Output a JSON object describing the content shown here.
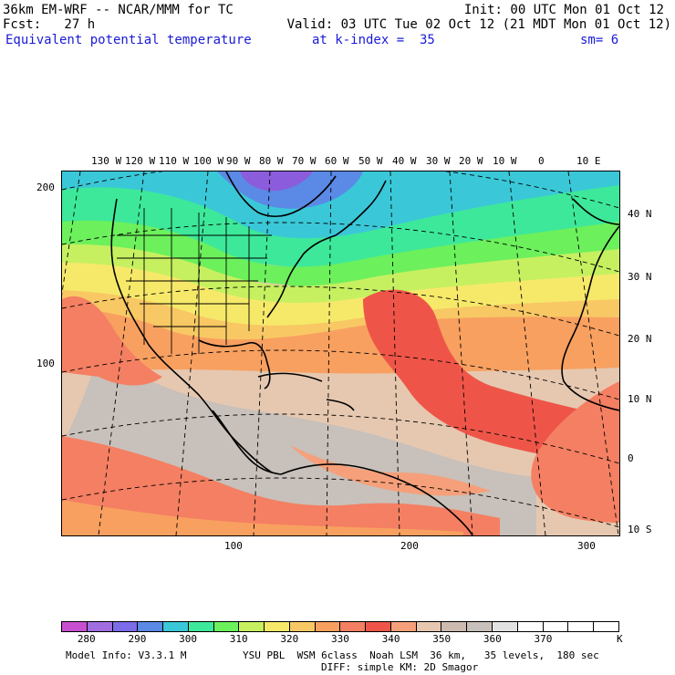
{
  "header": {
    "line1_left": "36km EM-WRF -- NCAR/MMM for TC",
    "line1_right": "Init: 00 UTC Mon 01 Oct 12",
    "line2_left": "Fcst:   27 h",
    "line2_right": "Valid: 03 UTC Tue 02 Oct 12 (21 MDT Mon 01 Oct 12)",
    "field_name": "Equivalent potential temperature",
    "level": "at k-index =  35",
    "smoothing": "sm= 6"
  },
  "map": {
    "lon_labels": [
      "130 W",
      "120 W",
      "110 W",
      "100 W",
      "90 W",
      "80 W",
      "70 W",
      "60 W",
      "50 W",
      "40 W",
      "30 W",
      "20 W",
      "10 W",
      "0",
      "10 E"
    ],
    "lat_labels": [
      "40 N",
      "30 N",
      "20 N",
      "10 N",
      "0",
      "10 S"
    ],
    "grid_x_labels": [
      "100",
      "200",
      "300"
    ],
    "grid_y_labels": [
      "200",
      "100"
    ],
    "colors": {
      "purple": "#8b5cdc",
      "blue": "#5a8ae6",
      "cyan": "#3ac8d8",
      "teal": "#3de89a",
      "green": "#6cf05c",
      "lime": "#c6f060",
      "yellow": "#f6e96a",
      "gold": "#f8c864",
      "orange": "#f8a060",
      "coral": "#f47f62",
      "red": "#ee5548",
      "salmon": "#f5a07a",
      "tan": "#e6c8b0",
      "grey": "#c8c0ba"
    }
  },
  "colorbar": {
    "labels": [
      "280",
      "290",
      "300",
      "310",
      "320",
      "330",
      "340",
      "350",
      "360",
      "370"
    ],
    "unit": "K",
    "colors": [
      "#c850d0",
      "#a06ee0",
      "#7c6cea",
      "#5a8ae6",
      "#3ac8d8",
      "#3de89a",
      "#6cf05c",
      "#c6f060",
      "#f6e96a",
      "#f8c864",
      "#f8a060",
      "#f47f62",
      "#ee5548",
      "#f5a07a",
      "#e6c8b0",
      "#cdbbb0",
      "#c8c0ba",
      "#e2e2e2",
      "#ffffff",
      "#ffffff",
      "#ffffff",
      "#ffffff"
    ]
  },
  "footer": {
    "model_info": "Model Info: V3.3.1 M",
    "physics": "YSU PBL  WSM 6class  Noah LSM  36 km,   35 levels,  180 sec",
    "diffusion": "DIFF: simple KM: 2D Smagor"
  }
}
